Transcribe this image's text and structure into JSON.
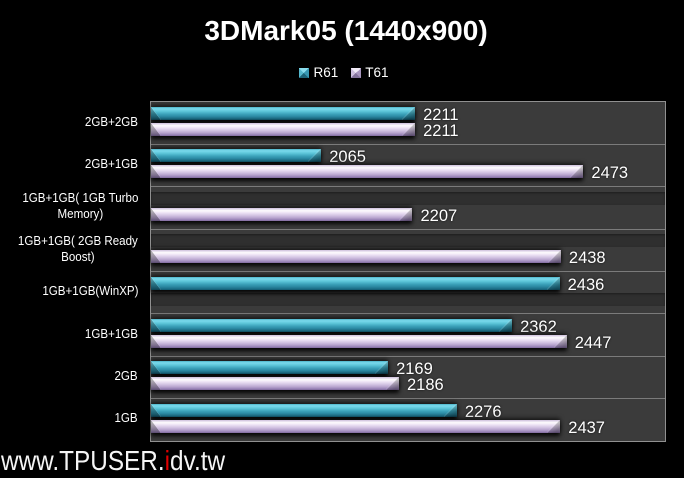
{
  "title": "3DMark05 (1440x900)",
  "legend": {
    "items": [
      {
        "label": "R61",
        "color": "#3aa0b8",
        "swatch": "teal"
      },
      {
        "label": "T61",
        "color": "#c9b8da",
        "swatch": "lav"
      }
    ]
  },
  "watermark": {
    "prefix": "www.TPUSER.",
    "accent": "i",
    "suffix": "dv.tw",
    "accent_color": "#e00000"
  },
  "colors": {
    "page_bg": "#000000",
    "plot_bg": "#3b3b3b",
    "gridline": "#7b7b7b",
    "text": "#ffffff",
    "r61_bar": "#3aa0b8",
    "t61_bar": "#c9b8da"
  },
  "chart_data": {
    "type": "bar",
    "orientation": "horizontal",
    "title": "3DMark05 (1440x900)",
    "categories": [
      [
        "2GB+2GB"
      ],
      [
        "2GB+1GB"
      ],
      [
        "1GB+1GB( 1GB Turbo",
        "Memory)"
      ],
      [
        "1GB+1GB( 2GB Ready",
        "Boost)"
      ],
      [
        "1GB+1GB(WinXP)"
      ],
      [
        "1GB+1GB"
      ],
      [
        "2GB"
      ],
      [
        "1GB"
      ]
    ],
    "series": [
      {
        "name": "R61",
        "values": [
          2211,
          2065,
          null,
          null,
          2436,
          2362,
          2169,
          2276
        ]
      },
      {
        "name": "T61",
        "values": [
          2211,
          2473,
          2207,
          2438,
          null,
          2447,
          2186,
          2437
        ]
      }
    ],
    "xlim": [
      1800,
      2600
    ],
    "grid": "horizontal-category-separators",
    "legend_position": "top"
  }
}
